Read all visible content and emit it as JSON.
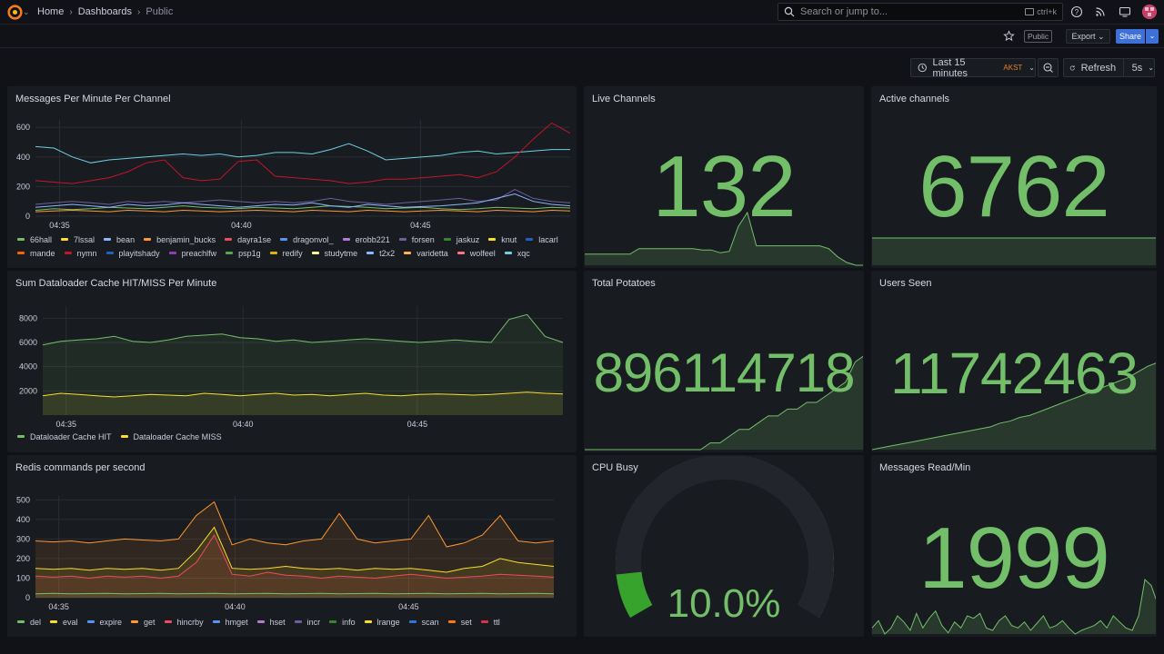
{
  "header": {
    "breadcrumbs": [
      "Home",
      "Dashboards",
      "Public"
    ],
    "search_placeholder": "Search or jump to...",
    "search_shortcut": "ctrl+k",
    "public_badge": "Public",
    "export_label": "Export",
    "share_label": "Share"
  },
  "controls": {
    "time_range": "Last 15 minutes",
    "timezone": "AKST",
    "refresh_label": "Refresh",
    "refresh_interval": "5s"
  },
  "colors": {
    "green": "#73bf69",
    "yellow": "#fade2a",
    "blue": "#5794f2",
    "orange": "#ff9830",
    "red": "#f2495c",
    "purple": "#b877d9"
  },
  "panels": {
    "messages_per_minute": {
      "title": "Messages Per Minute Per Channel",
      "legend": [
        {
          "name": "66hall",
          "color": "#73bf69"
        },
        {
          "name": "7lssal",
          "color": "#fade2a"
        },
        {
          "name": "bean",
          "color": "#8ab8ff"
        },
        {
          "name": "benjamin_bucks",
          "color": "#ff9830"
        },
        {
          "name": "dayra1se",
          "color": "#f2495c"
        },
        {
          "name": "dragonvol_",
          "color": "#5794f2"
        },
        {
          "name": "erobb221",
          "color": "#b877d9"
        },
        {
          "name": "forsen",
          "color": "#705da0"
        },
        {
          "name": "jaskuz",
          "color": "#37872d"
        },
        {
          "name": "knut",
          "color": "#fade2a"
        },
        {
          "name": "lacarl",
          "color": "#1f60c4"
        },
        {
          "name": "mande",
          "color": "#fa6400"
        },
        {
          "name": "nymn",
          "color": "#c4162a"
        },
        {
          "name": "playitshady",
          "color": "#1f60c4"
        },
        {
          "name": "preachlfw",
          "color": "#8f3bb8"
        },
        {
          "name": "psp1g",
          "color": "#56a64b"
        },
        {
          "name": "redify",
          "color": "#e0b400"
        },
        {
          "name": "studytme",
          "color": "#fff899"
        },
        {
          "name": "t2x2",
          "color": "#8ab8ff"
        },
        {
          "name": "varidetta",
          "color": "#ffb357"
        },
        {
          "name": "wolfeel",
          "color": "#ff7383"
        },
        {
          "name": "xqc",
          "color": "#6ed0e0"
        }
      ]
    },
    "live_channels": {
      "title": "Live Channels",
      "value": "132"
    },
    "active_channels": {
      "title": "Active channels",
      "value": "6762"
    },
    "dataloader": {
      "title": "Sum Dataloader Cache HIT/MISS Per Minute",
      "legend": [
        {
          "name": "Dataloader Cache HIT",
          "color": "#73bf69"
        },
        {
          "name": "Dataloader Cache MISS",
          "color": "#fade2a"
        }
      ]
    },
    "total_potatoes": {
      "title": "Total Potatoes",
      "value": "896114718"
    },
    "users_seen": {
      "title": "Users Seen",
      "value": "11742463"
    },
    "redis": {
      "title": "Redis commands per second",
      "legend": [
        {
          "name": "del",
          "color": "#73bf69"
        },
        {
          "name": "eval",
          "color": "#fade2a"
        },
        {
          "name": "expire",
          "color": "#5794f2"
        },
        {
          "name": "get",
          "color": "#ff9830"
        },
        {
          "name": "hincrby",
          "color": "#f2495c"
        },
        {
          "name": "hmget",
          "color": "#5794f2"
        },
        {
          "name": "hset",
          "color": "#b877d9"
        },
        {
          "name": "incr",
          "color": "#705da0"
        },
        {
          "name": "info",
          "color": "#37872d"
        },
        {
          "name": "lrange",
          "color": "#fade2a"
        },
        {
          "name": "scan",
          "color": "#3274d9"
        },
        {
          "name": "set",
          "color": "#ff780a"
        },
        {
          "name": "ttl",
          "color": "#e02f44"
        }
      ]
    },
    "cpu_busy": {
      "title": "CPU Busy",
      "value": "10.0%",
      "percent": 10.0
    },
    "messages_read": {
      "title": "Messages Read/Min",
      "value": "1999"
    }
  },
  "chart_data": [
    {
      "type": "line",
      "title": "Messages Per Minute Per Channel",
      "x_ticks": [
        "04:35",
        "04:40",
        "04:45"
      ],
      "y_ticks": [
        0,
        200,
        400,
        600
      ],
      "ylim": [
        0,
        650
      ],
      "series": [
        {
          "name": "xqc",
          "values": [
            470,
            460,
            400,
            360,
            380,
            390,
            400,
            410,
            420,
            410,
            420,
            400,
            410,
            430,
            430,
            420,
            450,
            490,
            440,
            380,
            390,
            400,
            410,
            430,
            440,
            420,
            430,
            440,
            450,
            450
          ]
        },
        {
          "name": "nymn",
          "values": [
            240,
            230,
            220,
            240,
            260,
            300,
            360,
            380,
            260,
            240,
            250,
            370,
            380,
            270,
            260,
            250,
            240,
            220,
            230,
            250,
            250,
            260,
            270,
            280,
            260,
            300,
            400,
            520,
            630,
            560
          ]
        },
        {
          "name": "forsen",
          "values": [
            80,
            90,
            100,
            90,
            80,
            100,
            90,
            100,
            90,
            100,
            110,
            100,
            90,
            100,
            90,
            100,
            120,
            100,
            90,
            80,
            90,
            100,
            110,
            120,
            100,
            110,
            180,
            120,
            100,
            90
          ]
        },
        {
          "name": "66hall",
          "values": [
            40,
            50,
            45,
            50,
            60,
            55,
            50,
            60,
            70,
            60,
            55,
            50,
            60,
            55,
            50,
            60,
            70,
            65,
            60,
            50,
            55,
            60,
            50,
            45,
            50,
            60,
            55,
            50,
            60,
            55
          ]
        },
        {
          "name": "bean",
          "values": [
            60,
            70,
            80,
            70,
            60,
            80,
            70,
            75,
            90,
            80,
            70,
            60,
            70,
            80,
            75,
            90,
            70,
            60,
            80,
            70,
            60,
            65,
            70,
            80,
            90,
            120,
            150,
            100,
            80,
            70
          ]
        },
        {
          "name": "benjamin_bucks",
          "values": [
            30,
            35,
            40,
            35,
            30,
            40,
            35,
            30,
            40,
            35,
            30,
            35,
            40,
            35,
            30,
            40,
            35,
            30,
            40,
            35,
            30,
            35,
            40,
            35,
            30,
            40,
            35,
            30,
            40,
            35
          ]
        }
      ]
    },
    {
      "type": "area",
      "title": "Sum Dataloader Cache HIT/MISS Per Minute",
      "x_ticks": [
        "04:35",
        "04:40",
        "04:45"
      ],
      "y_ticks": [
        2000,
        4000,
        6000,
        8000
      ],
      "ylim": [
        0,
        9000
      ],
      "series": [
        {
          "name": "Dataloader Cache HIT",
          "values": [
            5800,
            6100,
            6200,
            6300,
            6500,
            6100,
            6000,
            6200,
            6500,
            6600,
            6700,
            6400,
            6300,
            6100,
            6200,
            6000,
            6100,
            6200,
            6300,
            6200,
            6100,
            6000,
            6100,
            6200,
            6100,
            6000,
            7900,
            8300,
            6500,
            6000
          ]
        },
        {
          "name": "Dataloader Cache MISS",
          "values": [
            1600,
            1800,
            1700,
            1600,
            1500,
            1600,
            1700,
            1650,
            1600,
            1800,
            1700,
            1600,
            1700,
            1800,
            1650,
            1700,
            1600,
            1700,
            1800,
            1650,
            1600,
            1700,
            1750,
            1700,
            1650,
            1700,
            1800,
            1900,
            1800,
            1750
          ]
        }
      ]
    },
    {
      "type": "area",
      "title": "Redis commands per second",
      "x_ticks": [
        "04:35",
        "04:40",
        "04:45"
      ],
      "y_ticks": [
        0,
        100,
        200,
        300,
        400,
        500
      ],
      "ylim": [
        0,
        520
      ],
      "series": [
        {
          "name": "get",
          "values": [
            290,
            285,
            290,
            280,
            290,
            300,
            295,
            290,
            300,
            420,
            490,
            270,
            300,
            280,
            270,
            290,
            300,
            430,
            300,
            280,
            290,
            300,
            420,
            260,
            280,
            320,
            420,
            290,
            280,
            290
          ]
        },
        {
          "name": "eval",
          "values": [
            150,
            145,
            150,
            140,
            150,
            145,
            150,
            140,
            150,
            240,
            360,
            150,
            145,
            150,
            160,
            150,
            145,
            150,
            140,
            150,
            145,
            150,
            140,
            130,
            150,
            160,
            200,
            180,
            170,
            160
          ]
        },
        {
          "name": "hincrby",
          "values": [
            110,
            105,
            110,
            100,
            110,
            105,
            110,
            100,
            110,
            180,
            320,
            120,
            110,
            130,
            115,
            110,
            100,
            110,
            105,
            100,
            110,
            120,
            110,
            100,
            105,
            110,
            120,
            115,
            110,
            105
          ]
        },
        {
          "name": "del",
          "values": [
            20,
            22,
            20,
            21,
            22,
            20,
            21,
            22,
            20,
            21,
            22,
            20,
            21,
            22,
            20,
            21,
            22,
            20,
            21,
            22,
            20,
            21,
            22,
            20,
            21,
            22,
            20,
            21,
            22,
            20
          ]
        }
      ]
    },
    {
      "type": "area",
      "title": "Live Channels",
      "values": [
        110,
        110,
        110,
        110,
        110,
        110,
        130,
        130,
        130,
        130,
        130,
        130,
        130,
        125,
        125,
        115,
        120,
        210,
        260,
        140,
        140,
        140,
        140,
        140,
        140,
        140,
        140,
        130,
        100,
        80,
        70,
        70
      ]
    },
    {
      "type": "area",
      "title": "Active channels",
      "values": [
        6700,
        6700,
        6700,
        6700,
        6700,
        6700,
        6700,
        6700,
        6700,
        6700,
        6700,
        6700,
        6700,
        6700,
        6700,
        6700,
        6700,
        6700,
        6700,
        6700
      ]
    },
    {
      "type": "area",
      "title": "Total Potatoes",
      "values": [
        0,
        0,
        0,
        0,
        0,
        0,
        0,
        0,
        0,
        0,
        0,
        0,
        0,
        1,
        1,
        2,
        3,
        3,
        4,
        5,
        5,
        6,
        6,
        7,
        7,
        8,
        9,
        10,
        13,
        14
      ]
    },
    {
      "type": "area",
      "title": "Users Seen",
      "values": [
        0,
        1,
        2,
        3,
        4,
        5,
        6,
        7,
        8,
        9,
        10,
        11,
        12,
        14,
        15,
        17,
        18,
        20,
        22,
        24,
        26,
        28,
        30,
        32,
        34,
        36,
        38,
        41,
        44,
        46
      ]
    },
    {
      "type": "area",
      "title": "Messages Read/Min",
      "values": [
        1500,
        1560,
        1450,
        1500,
        1600,
        1550,
        1480,
        1620,
        1500,
        1580,
        1640,
        1520,
        1460,
        1550,
        1500,
        1600,
        1580,
        1620,
        1500,
        1480,
        1560,
        1600,
        1520,
        1500,
        1550,
        1480,
        1540,
        1600,
        1500,
        1520,
        1560,
        1500,
        1450,
        1480,
        1500,
        1520,
        1560,
        1500,
        1600,
        1550,
        1500,
        1480,
        1600,
        1900,
        1850,
        1700
      ]
    }
  ]
}
